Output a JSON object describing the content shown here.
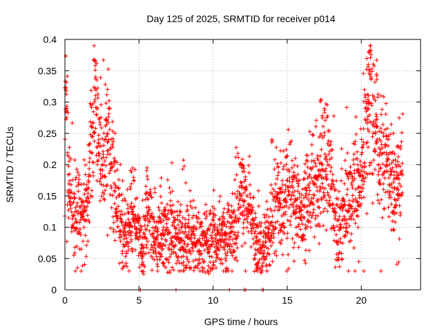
{
  "chart_data": {
    "type": "scatter",
    "title": "Day 125 of 2025, SRMTID for receiver p014",
    "xlabel": "GPS time / hours",
    "ylabel": "SRMTID / TECUs",
    "xlim": [
      0,
      24
    ],
    "ylim": [
      0,
      0.4
    ],
    "xticks": [
      0,
      5,
      10,
      15,
      20
    ],
    "xtick_labels": [
      "0",
      "5",
      "10",
      "15",
      "20"
    ],
    "yticks": [
      0,
      0.05,
      0.1,
      0.15,
      0.2,
      0.25,
      0.3,
      0.35,
      0.4
    ],
    "ytick_labels": [
      "0",
      "0.05",
      "0.1",
      "0.15",
      "0.2",
      "0.25",
      "0.3",
      "0.35",
      "0.4"
    ],
    "grid": true,
    "marker": "plus",
    "color": "#ff0000",
    "series": [
      {
        "name": "SRMTID",
        "trend": [
          [
            0.0,
            0.31
          ],
          [
            0.1,
            0.29
          ],
          [
            0.2,
            0.2
          ],
          [
            0.3,
            0.17
          ],
          [
            0.5,
            0.13
          ],
          [
            0.8,
            0.12
          ],
          [
            1.2,
            0.12
          ],
          [
            1.5,
            0.13
          ],
          [
            1.8,
            0.24
          ],
          [
            2.0,
            0.32
          ],
          [
            2.2,
            0.25
          ],
          [
            2.5,
            0.2
          ],
          [
            2.7,
            0.22
          ],
          [
            2.9,
            0.28
          ],
          [
            3.1,
            0.2
          ],
          [
            3.5,
            0.12
          ],
          [
            3.8,
            0.1
          ],
          [
            4.2,
            0.09
          ],
          [
            4.6,
            0.13
          ],
          [
            4.9,
            0.09
          ],
          [
            5.3,
            0.06
          ],
          [
            5.6,
            0.14
          ],
          [
            6.0,
            0.09
          ],
          [
            6.5,
            0.08
          ],
          [
            7.0,
            0.1
          ],
          [
            7.5,
            0.09
          ],
          [
            8.0,
            0.07
          ],
          [
            8.5,
            0.09
          ],
          [
            9.0,
            0.08
          ],
          [
            9.5,
            0.08
          ],
          [
            10.0,
            0.07
          ],
          [
            10.5,
            0.08
          ],
          [
            11.0,
            0.09
          ],
          [
            11.5,
            0.1
          ],
          [
            11.8,
            0.13
          ],
          [
            12.2,
            0.15
          ],
          [
            12.5,
            0.13
          ],
          [
            12.8,
            0.08
          ],
          [
            13.2,
            0.06
          ],
          [
            13.6,
            0.08
          ],
          [
            14.0,
            0.1
          ],
          [
            14.3,
            0.14
          ],
          [
            14.8,
            0.13
          ],
          [
            15.2,
            0.17
          ],
          [
            15.5,
            0.13
          ],
          [
            16.0,
            0.12
          ],
          [
            16.5,
            0.15
          ],
          [
            17.0,
            0.17
          ],
          [
            17.5,
            0.18
          ],
          [
            17.8,
            0.2
          ],
          [
            18.2,
            0.12
          ],
          [
            18.6,
            0.1
          ],
          [
            19.0,
            0.13
          ],
          [
            19.5,
            0.15
          ],
          [
            20.0,
            0.17
          ],
          [
            20.3,
            0.27
          ],
          [
            20.6,
            0.32
          ],
          [
            20.9,
            0.25
          ],
          [
            21.3,
            0.22
          ],
          [
            21.7,
            0.2
          ],
          [
            22.0,
            0.18
          ],
          [
            22.4,
            0.16
          ],
          [
            22.8,
            0.18
          ]
        ],
        "peaks": [
          [
            2.0,
            0.38
          ],
          [
            2.1,
            0.37
          ],
          [
            2.8,
            0.33
          ],
          [
            20.6,
            0.39
          ],
          [
            20.5,
            0.36
          ],
          [
            21.0,
            0.35
          ],
          [
            0.05,
            0.325
          ],
          [
            17.3,
            0.32
          ],
          [
            17.5,
            0.3
          ],
          [
            8.0,
            0.21
          ],
          [
            11.6,
            0.23
          ],
          [
            14.0,
            0.25
          ],
          [
            12.0,
            0.21
          ],
          [
            4.5,
            0.2
          ],
          [
            5.5,
            0.2
          ]
        ],
        "zero_points": [
          5.0,
          5.1,
          7.5,
          11.1,
          12.1,
          12.2,
          13.3,
          13.4
        ]
      }
    ]
  }
}
